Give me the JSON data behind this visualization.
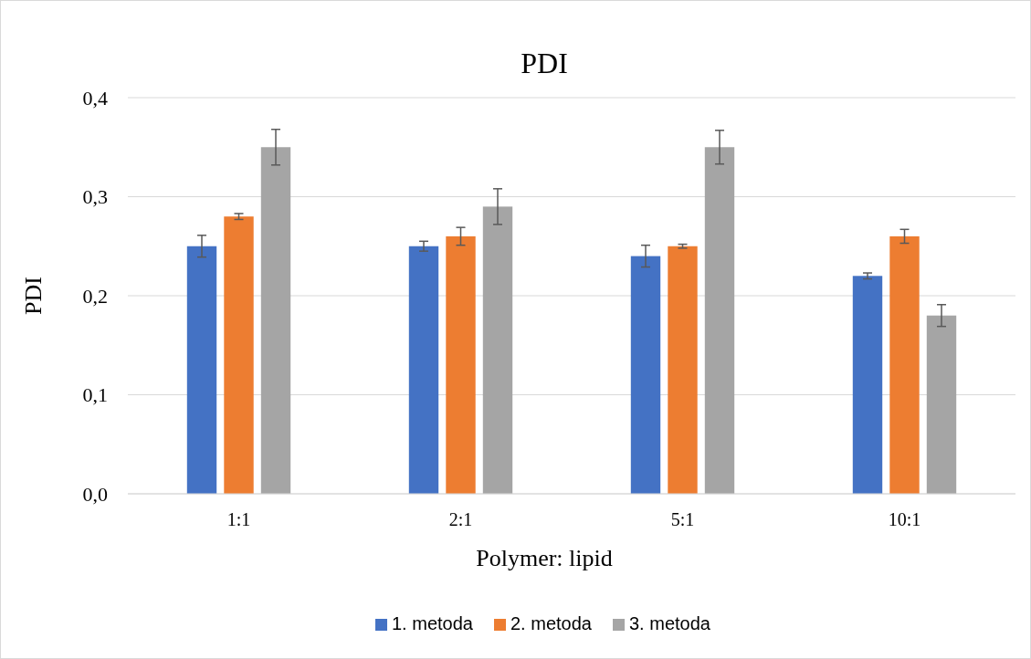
{
  "chart_data": {
    "type": "bar",
    "title": "PDI",
    "xlabel": "Polymer: lipid",
    "ylabel": "PDI",
    "categories": [
      "1:1",
      "2:1",
      "5:1",
      "10:1"
    ],
    "series": [
      {
        "name": "1. metoda",
        "color": "#4472c4",
        "values": [
          0.25,
          0.25,
          0.24,
          0.22
        ],
        "errors": [
          0.011,
          0.005,
          0.011,
          0.003
        ]
      },
      {
        "name": "2. metoda",
        "color": "#ed7d31",
        "values": [
          0.28,
          0.26,
          0.25,
          0.26
        ],
        "errors": [
          0.003,
          0.009,
          0.002,
          0.007
        ]
      },
      {
        "name": "3. metoda",
        "color": "#a5a5a5",
        "values": [
          0.35,
          0.29,
          0.35,
          0.18
        ],
        "errors": [
          0.018,
          0.018,
          0.017,
          0.011
        ]
      }
    ],
    "ylim": [
      0,
      0.4
    ],
    "yticks": [
      {
        "value": 0,
        "label": "0,0"
      },
      {
        "value": 0.1,
        "label": "0,1"
      },
      {
        "value": 0.2,
        "label": "0,2"
      },
      {
        "value": 0.3,
        "label": "0,3"
      },
      {
        "value": 0.4,
        "label": "0,4"
      }
    ],
    "grid": "y",
    "legend": "bottom"
  }
}
